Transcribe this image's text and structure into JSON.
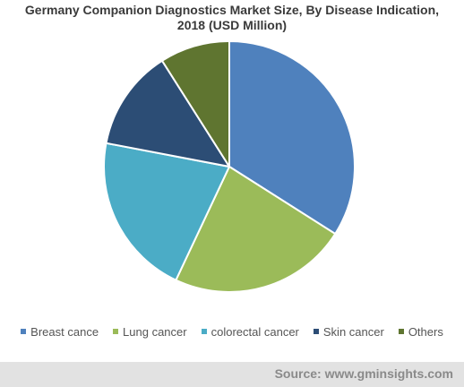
{
  "chart_data": {
    "type": "pie",
    "title_line1": "Germany Companion Diagnostics Market Size, By Disease Indication,",
    "title_line2": "2018 (USD Million)",
    "categories": [
      "Breast cance",
      "Lung cancer",
      "colorectal cancer",
      "Skin cancer",
      "Others"
    ],
    "values": [
      34,
      23,
      21,
      13,
      9
    ],
    "colors": [
      "#4f81bd",
      "#9bbb59",
      "#4bacc6",
      "#2c4d75",
      "#5f7530"
    ],
    "legend_position": "bottom"
  },
  "source": {
    "text": "Source: www.gminsights.com"
  }
}
